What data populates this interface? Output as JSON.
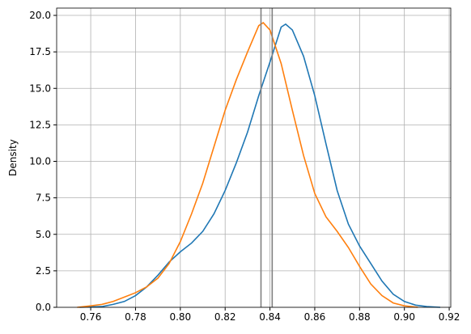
{
  "chart_data": {
    "type": "line",
    "ylabel": "Density",
    "xlim": [
      0.7448,
      0.9207
    ],
    "ylim": [
      0,
      20.5
    ],
    "xticks": [
      0.76,
      0.78,
      {
        "value": 0.8,
        "label": "0.80"
      },
      0.82,
      0.84,
      0.86,
      0.88,
      {
        "value": 0.9,
        "label": "0.90"
      },
      0.92
    ],
    "yticks": [
      {
        "value": 0,
        "label": "0.0"
      },
      2.5,
      {
        "value": 5,
        "label": "5.0"
      },
      7.5,
      {
        "value": 10,
        "label": "10.0"
      },
      12.5,
      {
        "value": 15,
        "label": "15.0"
      },
      17.5,
      {
        "value": 20,
        "label": "20.0"
      }
    ],
    "grid": true,
    "series": [
      {
        "color": "#1f77b4",
        "x": [
          0.755,
          0.765,
          0.77,
          0.775,
          0.78,
          0.785,
          0.79,
          0.795,
          0.8,
          0.805,
          0.81,
          0.815,
          0.82,
          0.825,
          0.83,
          0.835,
          0.84,
          0.845,
          0.847,
          0.85,
          0.855,
          0.86,
          0.865,
          0.87,
          0.875,
          0.88,
          0.885,
          0.89,
          0.895,
          0.9,
          0.905,
          0.91,
          0.916
        ],
        "values": [
          0,
          0.05,
          0.2,
          0.4,
          0.8,
          1.4,
          2.2,
          3.1,
          3.8,
          4.4,
          5.2,
          6.4,
          8.0,
          9.9,
          12.0,
          14.5,
          16.8,
          19.2,
          19.4,
          19.0,
          17.2,
          14.5,
          11.2,
          8.0,
          5.7,
          4.2,
          3.0,
          1.8,
          0.9,
          0.4,
          0.15,
          0.05,
          0
        ]
      },
      {
        "color": "#ff7f0e",
        "x": [
          0.754,
          0.76,
          0.765,
          0.77,
          0.775,
          0.78,
          0.785,
          0.79,
          0.795,
          0.8,
          0.805,
          0.81,
          0.815,
          0.82,
          0.825,
          0.83,
          0.835,
          0.837,
          0.84,
          0.845,
          0.85,
          0.855,
          0.86,
          0.865,
          0.87,
          0.875,
          0.88,
          0.885,
          0.89,
          0.895,
          0.9,
          0.906
        ],
        "values": [
          0,
          0.1,
          0.2,
          0.4,
          0.7,
          1.0,
          1.4,
          2.0,
          3.0,
          4.5,
          6.4,
          8.5,
          11.0,
          13.5,
          15.6,
          17.5,
          19.3,
          19.5,
          19.0,
          16.7,
          13.5,
          10.4,
          7.8,
          6.2,
          5.2,
          4.1,
          2.8,
          1.6,
          0.8,
          0.3,
          0.1,
          0
        ]
      }
    ],
    "vlines": [
      0.836,
      0.841
    ],
    "vline_color": "#808080"
  }
}
